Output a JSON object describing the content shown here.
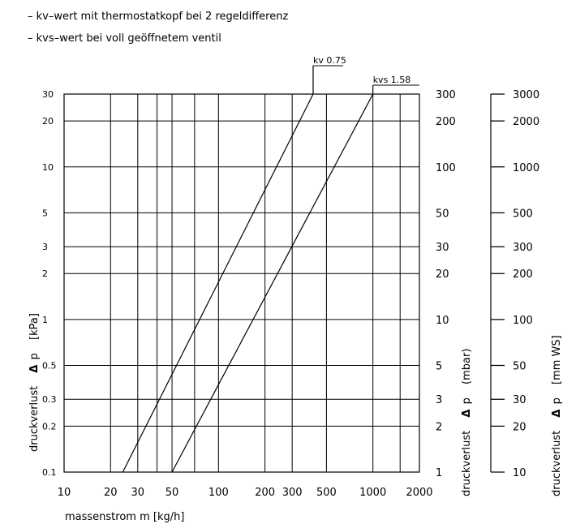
{
  "legend": [
    "– kv–wert mit thermostatkopf bei 2 regeldifferenz",
    "– kvs–wert bei voll geöffnetem ventil"
  ],
  "chart_data": {
    "type": "line",
    "xlabel": "massenstrom m [kg/h]",
    "x_scale": "log",
    "y_scale": "log",
    "xlim": [
      10,
      2000
    ],
    "ylim": [
      0.1,
      30
    ],
    "grid": true,
    "x_ticks": [
      "10",
      "20",
      "30",
      "50",
      "100",
      "200",
      "300",
      "500",
      "1000",
      "2000"
    ],
    "y_left": {
      "label_text": "druckverlust",
      "label_delta": "Δ",
      "label_p": "p",
      "label_unit": "[kPa]",
      "ticks": [
        "30",
        "20",
        "10",
        "5",
        "3",
        "2",
        "1",
        "0.5",
        "0.3",
        "0.2",
        "0.1"
      ]
    },
    "y_mid": {
      "label_text": "druckverlust",
      "label_delta": "Δ",
      "label_p": "p",
      "label_unit": "(mbar)",
      "ticks": [
        "300",
        "200",
        "100",
        "50",
        "30",
        "20",
        "10",
        "5",
        "3",
        "2",
        "1"
      ]
    },
    "y_right": {
      "label_text": "druckverlust",
      "label_delta": "Δ",
      "label_p": "p",
      "label_unit": "[mm WS]",
      "ticks": [
        "3000",
        "2000",
        "1000",
        "500",
        "300",
        "200",
        "100",
        "50",
        "30",
        "20",
        "10"
      ]
    },
    "series": [
      {
        "name": "kv 0.75",
        "x": [
          24,
          410
        ],
        "y": [
          0.1,
          30
        ]
      },
      {
        "name": "kvs 1.58",
        "x": [
          50,
          1000
        ],
        "y": [
          0.1,
          30
        ]
      }
    ]
  }
}
